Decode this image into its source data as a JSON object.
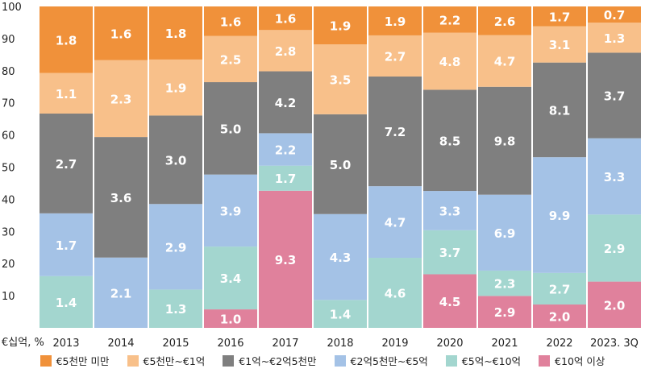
{
  "chart_data": {
    "type": "bar",
    "stacked": true,
    "normalized_percent": true,
    "categories": [
      "2013",
      "2014",
      "2015",
      "2016",
      "2017",
      "2018",
      "2019",
      "2020",
      "2021",
      "2022",
      "2023. 3Q"
    ],
    "y_ticks": [
      "10",
      "20",
      "30",
      "40",
      "50",
      "60",
      "70",
      "80",
      "90",
      "100"
    ],
    "y_unit_label": "€십억, %",
    "ylim": [
      0,
      100
    ],
    "grid": false,
    "legend_position": "bottom",
    "series": [
      {
        "name": "€10억 이상",
        "color": "#e0819c",
        "values": [
          0,
          0,
          0,
          1.0,
          9.3,
          0,
          0,
          4.5,
          2.9,
          2.0,
          2.0
        ]
      },
      {
        "name": "€5억~€10억",
        "color": "#a3d6cf",
        "values": [
          1.4,
          0,
          1.3,
          3.4,
          1.7,
          1.4,
          4.6,
          3.7,
          2.3,
          2.7,
          2.9
        ]
      },
      {
        "name": "€2억5천만~€5억",
        "color": "#a4c2e6",
        "values": [
          1.7,
          2.1,
          2.9,
          3.9,
          2.2,
          4.3,
          4.7,
          3.3,
          6.9,
          9.9,
          3.3
        ]
      },
      {
        "name": "€1억~€2억5천만",
        "color": "#7f7f7f",
        "values": [
          2.7,
          3.6,
          3.0,
          5.0,
          4.2,
          5.0,
          7.2,
          8.5,
          9.8,
          8.1,
          3.7
        ]
      },
      {
        "name": "€5천만~€1억",
        "color": "#f8c08a",
        "values": [
          1.1,
          2.3,
          1.9,
          2.5,
          2.8,
          3.5,
          2.7,
          4.8,
          4.7,
          3.1,
          1.3
        ]
      },
      {
        "name": "€5천만 미만",
        "color": "#f0913a",
        "values": [
          1.8,
          1.6,
          1.8,
          1.6,
          1.6,
          1.9,
          1.9,
          2.2,
          2.6,
          1.7,
          0.7
        ]
      }
    ],
    "legend_order": [
      "€5천만 미만",
      "€5천만~€1억",
      "€1억~€2억5천만",
      "€2억5천만~€5억",
      "€5억~€10억",
      "€10억 이상"
    ]
  }
}
